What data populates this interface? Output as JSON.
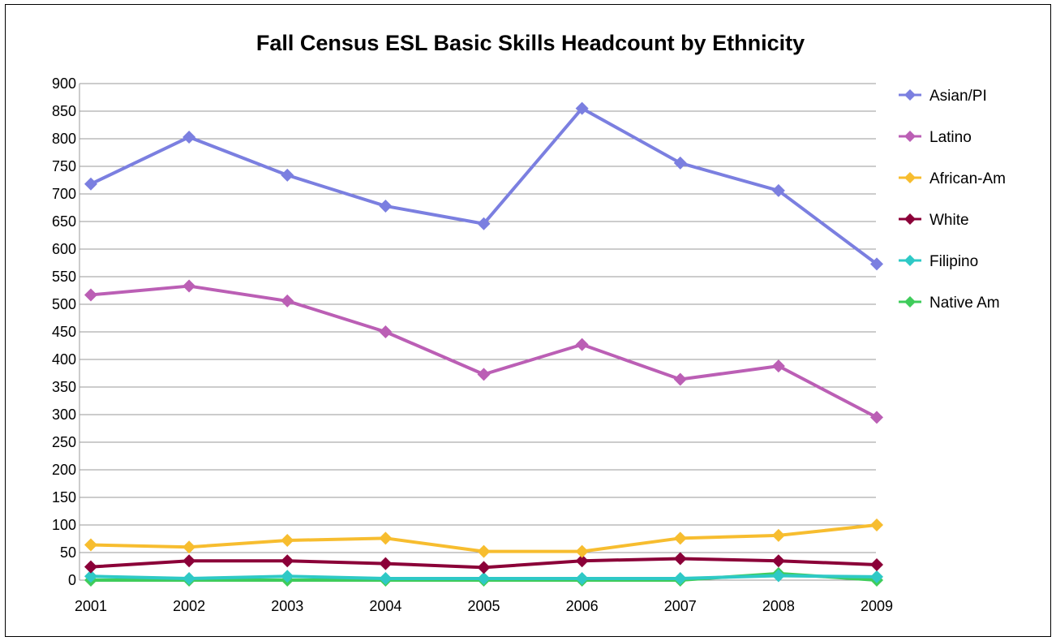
{
  "chart_data": {
    "type": "line",
    "title": "Fall Census ESL Basic Skills Headcount by Ethnicity",
    "xlabel": "",
    "ylabel": "",
    "categories": [
      "2001",
      "2002",
      "2003",
      "2004",
      "2005",
      "2006",
      "2007",
      "2008",
      "2009"
    ],
    "ylim": [
      0,
      900
    ],
    "yticks": [
      0,
      50,
      100,
      150,
      200,
      250,
      300,
      350,
      400,
      450,
      500,
      550,
      600,
      650,
      700,
      750,
      800,
      850,
      900
    ],
    "grid": true,
    "legend_position": "right",
    "series": [
      {
        "name": "Asian/PI",
        "color": "#7b7fe0",
        "values": [
          718,
          803,
          734,
          678,
          646,
          855,
          756,
          706,
          573
        ]
      },
      {
        "name": "Latino",
        "color": "#bb5fb5",
        "values": [
          517,
          533,
          506,
          450,
          373,
          427,
          364,
          388,
          295
        ]
      },
      {
        "name": "African-Am",
        "color": "#f7bd2f",
        "values": [
          64,
          60,
          72,
          76,
          52,
          52,
          76,
          81,
          100
        ]
      },
      {
        "name": "White",
        "color": "#8b0038",
        "values": [
          24,
          35,
          35,
          30,
          23,
          35,
          39,
          35,
          28
        ]
      },
      {
        "name": "Filipino",
        "color": "#2ec9c6",
        "values": [
          7,
          3,
          7,
          3,
          3,
          3,
          3,
          8,
          6
        ]
      },
      {
        "name": "Native Am",
        "color": "#3fcc5b",
        "values": [
          0,
          0,
          0,
          0,
          0,
          0,
          0,
          12,
          0
        ]
      }
    ]
  }
}
